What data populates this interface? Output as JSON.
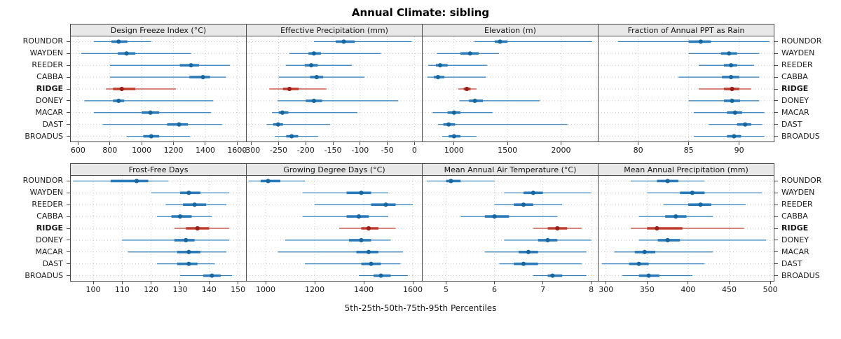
{
  "title": "Annual Climate: sibling",
  "caption": "5th-25th-50th-75th-95th Percentiles",
  "stations": [
    "ROUNDOR",
    "WAYDEN",
    "REEDER",
    "CABBA",
    "RIDGE",
    "DONEY",
    "MACAR",
    "DAST",
    "BROADUS"
  ],
  "highlight_station": "RIDGE",
  "percentiles": [
    "p5",
    "p25",
    "p50",
    "p75",
    "p95"
  ],
  "colors": {
    "line": "#2b7bba",
    "dot": "#17669e",
    "highlight_line": "#c03a2b",
    "highlight_dot": "#97201a",
    "grid": "#c4cdd4",
    "strip_bg": "#e8e8e8",
    "border": "#4a4a4a",
    "text": "#1a1a1a"
  },
  "chart_data": [
    {
      "type": "dotplot-interval",
      "title": "Design Freeze Index (°C)",
      "xlim": [
        550,
        1660
      ],
      "ticks": [
        600,
        800,
        1000,
        1200,
        1400,
        1600
      ],
      "values": {
        "ROUNDOR": [
          700,
          810,
          855,
          910,
          1060
        ],
        "WAYDEN": [
          620,
          850,
          905,
          960,
          1310
        ],
        "REEDER": [
          800,
          1240,
          1310,
          1360,
          1555
        ],
        "CABBA": [
          800,
          1300,
          1385,
          1430,
          1530
        ],
        "RIDGE": [
          775,
          820,
          875,
          960,
          1215
        ],
        "DONEY": [
          640,
          820,
          855,
          890,
          1450
        ],
        "MACAR": [
          700,
          1000,
          1055,
          1110,
          1435
        ],
        "DAST": [
          755,
          1160,
          1235,
          1290,
          1505
        ],
        "BROADUS": [
          905,
          1010,
          1060,
          1110,
          1305
        ]
      }
    },
    {
      "type": "dotplot-interval",
      "title": "Effective Precipitation (mm)",
      "xlim": [
        -310,
        15
      ],
      "ticks": [
        -300,
        -250,
        -200,
        -150,
        -100,
        -50,
        0
      ],
      "values": {
        "ROUNDOR": [
          -185,
          -145,
          -130,
          -110,
          -5
        ],
        "WAYDEN": [
          -230,
          -195,
          -185,
          -172,
          -62
        ],
        "REEDER": [
          -237,
          -202,
          -190,
          -178,
          -115
        ],
        "CABBA": [
          -250,
          -192,
          -180,
          -168,
          -92
        ],
        "RIDGE": [
          -267,
          -242,
          -230,
          -213,
          -162
        ],
        "DONEY": [
          -252,
          -200,
          -185,
          -170,
          -30
        ],
        "MACAR": [
          -262,
          -250,
          -243,
          -232,
          -105
        ],
        "DAST": [
          -272,
          -260,
          -251,
          -242,
          -155
        ],
        "BROADUS": [
          -257,
          -236,
          -226,
          -214,
          -177
        ]
      }
    },
    {
      "type": "dotplot-interval",
      "title": "Elevation (m)",
      "xlim": [
        700,
        2350
      ],
      "ticks": [
        1000,
        1500,
        2000
      ],
      "values": {
        "ROUNDOR": [
          1190,
          1380,
          1430,
          1500,
          2290
        ],
        "WAYDEN": [
          840,
          1060,
          1150,
          1230,
          1420
        ],
        "REEDER": [
          760,
          830,
          870,
          940,
          1310
        ],
        "CABBA": [
          750,
          810,
          850,
          910,
          1300
        ],
        "RIDGE": [
          1040,
          1090,
          1120,
          1155,
          1210
        ],
        "DONEY": [
          1050,
          1140,
          1195,
          1270,
          1800
        ],
        "MACAR": [
          800,
          940,
          1000,
          1060,
          1360
        ],
        "DAST": [
          850,
          900,
          950,
          1010,
          2060
        ],
        "BROADUS": [
          890,
          950,
          1000,
          1060,
          1210
        ]
      }
    },
    {
      "type": "dotplot-interval",
      "title": "Fraction of Annual PPT as Rain",
      "xlim": [
        76,
        93.5
      ],
      "ticks": [
        80,
        85,
        90
      ],
      "values": {
        "ROUNDOR": [
          78,
          85,
          86.2,
          87.2,
          93
        ],
        "WAYDEN": [
          85,
          88.2,
          89,
          89.8,
          92
        ],
        "REEDER": [
          86,
          88.5,
          89.2,
          89.8,
          91.5
        ],
        "CABBA": [
          84,
          88.3,
          89.2,
          90,
          92
        ],
        "RIDGE": [
          86,
          88.5,
          89.3,
          90,
          91.2
        ],
        "DONEY": [
          85,
          88.5,
          89.3,
          90.1,
          92
        ],
        "MACAR": [
          85.5,
          88.8,
          89.6,
          90.3,
          92.5
        ],
        "DAST": [
          87,
          89.8,
          90.6,
          91.2,
          92.3
        ],
        "BROADUS": [
          85.5,
          88.8,
          89.5,
          90.2,
          92.5
        ]
      }
    },
    {
      "type": "dotplot-interval",
      "title": "Frost-Free Days",
      "xlim": [
        92,
        153
      ],
      "ticks": [
        100,
        110,
        120,
        130,
        140,
        150
      ],
      "values": {
        "ROUNDOR": [
          93,
          106,
          115,
          119,
          126
        ],
        "WAYDEN": [
          120,
          130,
          133,
          137,
          147
        ],
        "REEDER": [
          125,
          131,
          135,
          139,
          146
        ],
        "CABBA": [
          122,
          127,
          130,
          134,
          141
        ],
        "RIDGE": [
          128,
          132,
          136,
          140,
          147
        ],
        "DONEY": [
          110,
          128,
          132,
          135,
          147
        ],
        "MACAR": [
          112,
          129,
          133,
          137,
          146
        ],
        "DAST": [
          122,
          129,
          133,
          136,
          142
        ],
        "BROADUS": [
          130,
          138,
          141,
          144,
          148
        ]
      }
    },
    {
      "type": "dotplot-interval",
      "title": "Growing Degree Days (°C)",
      "xlim": [
        920,
        1640
      ],
      "ticks": [
        1000,
        1200,
        1400,
        1600
      ],
      "values": {
        "ROUNDOR": [
          930,
          980,
          1010,
          1060,
          1160
        ],
        "WAYDEN": [
          1150,
          1330,
          1390,
          1430,
          1500
        ],
        "REEDER": [
          1200,
          1430,
          1490,
          1530,
          1600
        ],
        "CABBA": [
          1150,
          1330,
          1380,
          1420,
          1500
        ],
        "RIDGE": [
          1300,
          1390,
          1420,
          1460,
          1530
        ],
        "DONEY": [
          1080,
          1340,
          1390,
          1430,
          1510
        ],
        "MACAR": [
          1050,
          1370,
          1420,
          1460,
          1560
        ],
        "DAST": [
          1160,
          1390,
          1430,
          1470,
          1550
        ],
        "BROADUS": [
          1380,
          1440,
          1470,
          1510,
          1580
        ]
      }
    },
    {
      "type": "dotplot-interval",
      "title": "Mean Annual Air Temperature (°C)",
      "xlim": [
        4.5,
        8.15
      ],
      "ticks": [
        5,
        6,
        7,
        8
      ],
      "values": {
        "ROUNDOR": [
          4.6,
          5.0,
          5.1,
          5.3,
          6.0
        ],
        "WAYDEN": [
          6.2,
          6.6,
          6.8,
          7.0,
          8.0
        ],
        "REEDER": [
          6.0,
          6.4,
          6.6,
          6.8,
          7.4
        ],
        "CABBA": [
          5.3,
          5.8,
          6.0,
          6.3,
          7.3
        ],
        "RIDGE": [
          6.8,
          7.1,
          7.3,
          7.5,
          7.8
        ],
        "DONEY": [
          6.2,
          6.9,
          7.1,
          7.3,
          8.0
        ],
        "MACAR": [
          5.8,
          6.5,
          6.7,
          6.9,
          7.9
        ],
        "DAST": [
          6.1,
          6.4,
          6.6,
          6.9,
          7.8
        ],
        "BROADUS": [
          6.8,
          7.1,
          7.2,
          7.4,
          7.9
        ]
      }
    },
    {
      "type": "dotplot-interval",
      "title": "Mean Annual Precipitation (mm)",
      "xlim": [
        290,
        505
      ],
      "ticks": [
        300,
        350,
        400,
        450,
        500
      ],
      "values": {
        "ROUNDOR": [
          330,
          362,
          375,
          388,
          420
        ],
        "WAYDEN": [
          350,
          390,
          405,
          420,
          490
        ],
        "REEDER": [
          370,
          400,
          415,
          428,
          470
        ],
        "CABBA": [
          340,
          372,
          385,
          398,
          430
        ],
        "RIDGE": [
          330,
          350,
          362,
          393,
          468
        ],
        "DONEY": [
          340,
          363,
          375,
          390,
          495
        ],
        "MACAR": [
          310,
          335,
          347,
          360,
          430
        ],
        "DAST": [
          295,
          328,
          340,
          352,
          420
        ],
        "BROADUS": [
          320,
          340,
          352,
          365,
          405
        ]
      }
    }
  ]
}
